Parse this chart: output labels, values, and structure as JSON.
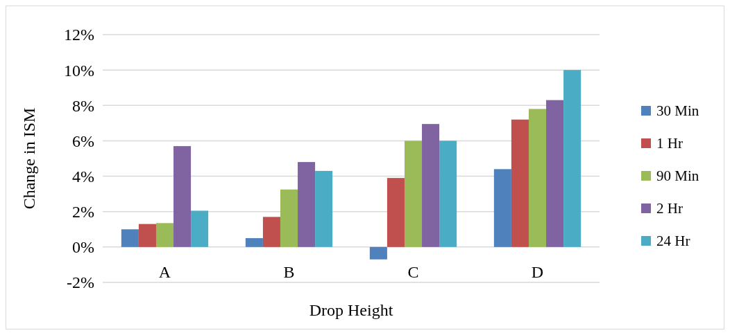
{
  "chart_data": {
    "type": "bar",
    "xlabel": "Drop Height",
    "ylabel": "Change in ISM",
    "categories": [
      "A",
      "B",
      "C",
      "D"
    ],
    "series": [
      {
        "name": "30 Min",
        "color": "#4f81bd",
        "values": [
          1.0,
          0.5,
          -0.7,
          4.4
        ]
      },
      {
        "name": "1 Hr",
        "color": "#c0504d",
        "values": [
          1.3,
          1.7,
          3.9,
          7.2
        ]
      },
      {
        "name": "90 Min",
        "color": "#9bbb59",
        "values": [
          1.35,
          3.25,
          6.0,
          7.8
        ]
      },
      {
        "name": "2 Hr",
        "color": "#8064a2",
        "values": [
          5.7,
          4.8,
          6.95,
          8.3
        ]
      },
      {
        "name": "24 Hr",
        "color": "#4bacc6",
        "values": [
          2.05,
          4.3,
          6.0,
          10.0
        ]
      }
    ],
    "ylim": [
      -2,
      12
    ],
    "yticks": [
      {
        "value": -2,
        "label": "-2%"
      },
      {
        "value": 0,
        "label": "0%"
      },
      {
        "value": 2,
        "label": "2%"
      },
      {
        "value": 4,
        "label": "4%"
      },
      {
        "value": 6,
        "label": "6%"
      },
      {
        "value": 8,
        "label": "8%"
      },
      {
        "value": 10,
        "label": "10%"
      },
      {
        "value": 12,
        "label": "12%"
      }
    ],
    "grid": "y",
    "legend": "right"
  }
}
